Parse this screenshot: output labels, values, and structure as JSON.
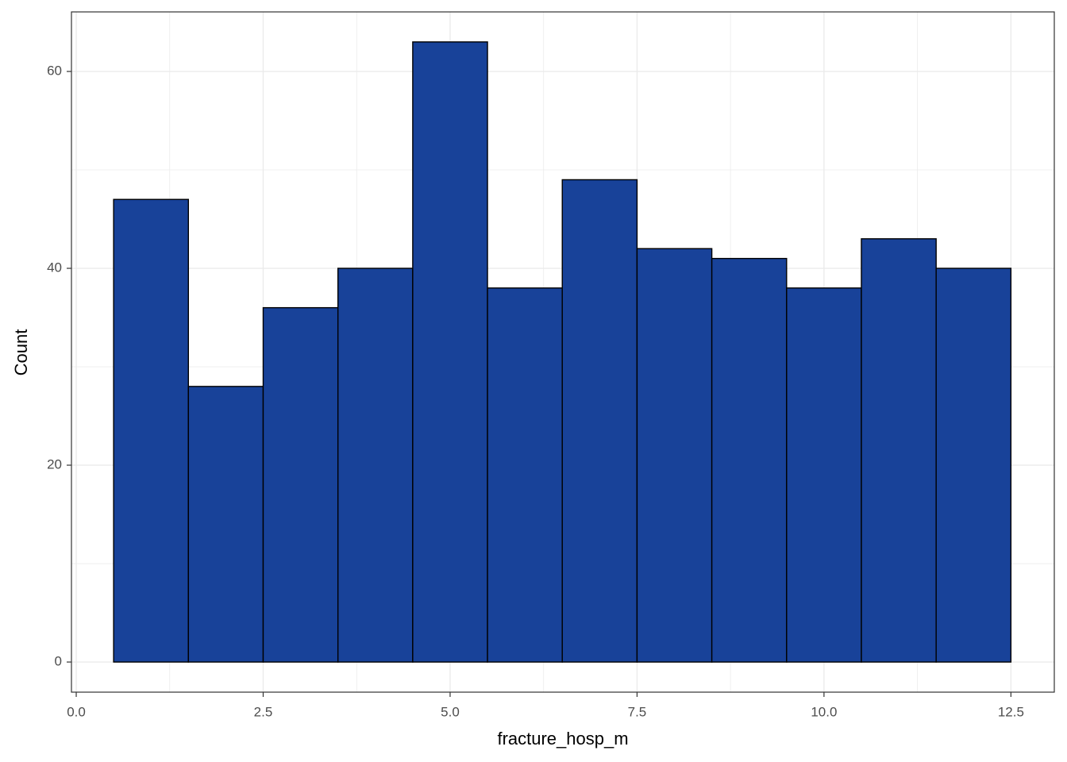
{
  "chart_data": {
    "type": "histogram",
    "x_label": "fracture_hosp_m",
    "y_label": "Count",
    "bins": [
      0.5,
      1.5,
      2.5,
      3.5,
      4.5,
      5.5,
      6.5,
      7.5,
      8.5,
      9.5,
      10.5,
      11.5,
      12.5
    ],
    "values": [
      47,
      28,
      36,
      40,
      63,
      38,
      49,
      42,
      41,
      38,
      43,
      40
    ],
    "color": "#184299",
    "edge_color": "#000000",
    "xlim": [
      -0.064,
      13.08
    ],
    "ylim": [
      -3.06,
      66.05
    ],
    "xticks": [
      {
        "value": 0,
        "label": "0.0"
      },
      2.5,
      {
        "value": 5,
        "label": "5.0"
      },
      7.5,
      {
        "value": 10,
        "label": "10.0"
      },
      12.5
    ],
    "yticks": [
      0,
      20,
      40,
      60
    ],
    "x_minor_grid": [
      1.25,
      3.75,
      6.25,
      8.75,
      11.25
    ],
    "y_minor_grid": [
      10,
      30,
      50
    ],
    "grid": true
  }
}
